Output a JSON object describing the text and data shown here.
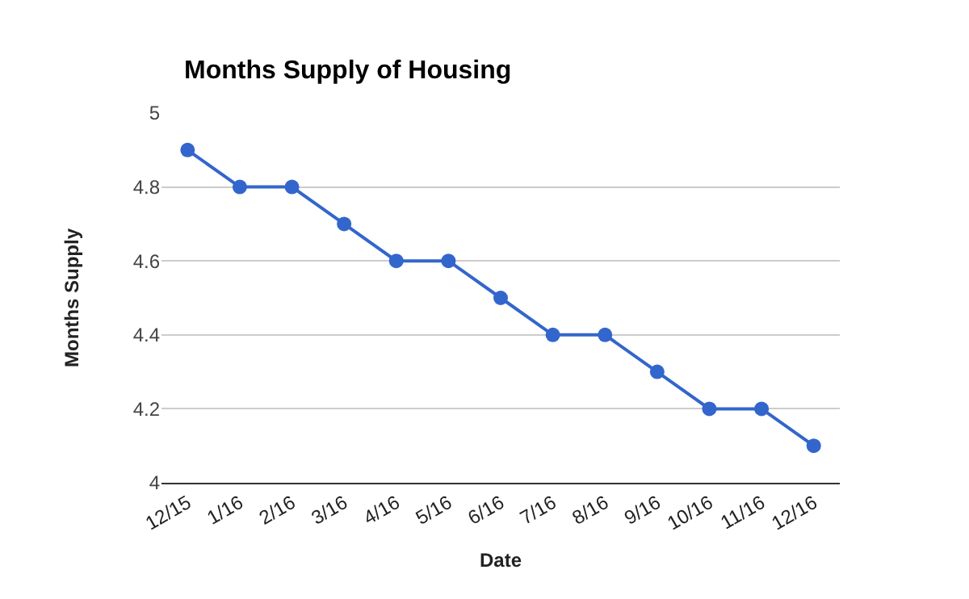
{
  "chart_data": {
    "type": "line",
    "title": "Months Supply of Housing",
    "xlabel": "Date",
    "ylabel": "Months Supply",
    "categories": [
      "12/15",
      "1/16",
      "2/16",
      "3/16",
      "4/16",
      "5/16",
      "6/16",
      "7/16",
      "8/16",
      "9/16",
      "10/16",
      "11/16",
      "12/16"
    ],
    "series": [
      {
        "color": "#3366cc",
        "values": [
          4.9,
          4.8,
          4.8,
          4.7,
          4.6,
          4.6,
          4.5,
          4.4,
          4.4,
          4.3,
          4.2,
          4.2,
          4.1
        ]
      }
    ],
    "ylim": [
      4,
      5
    ],
    "yticks": [
      4,
      4.2,
      4.4,
      4.6,
      4.8,
      5
    ],
    "grid": "y",
    "marker": "circle",
    "line_style": "solid",
    "legend": false
  }
}
